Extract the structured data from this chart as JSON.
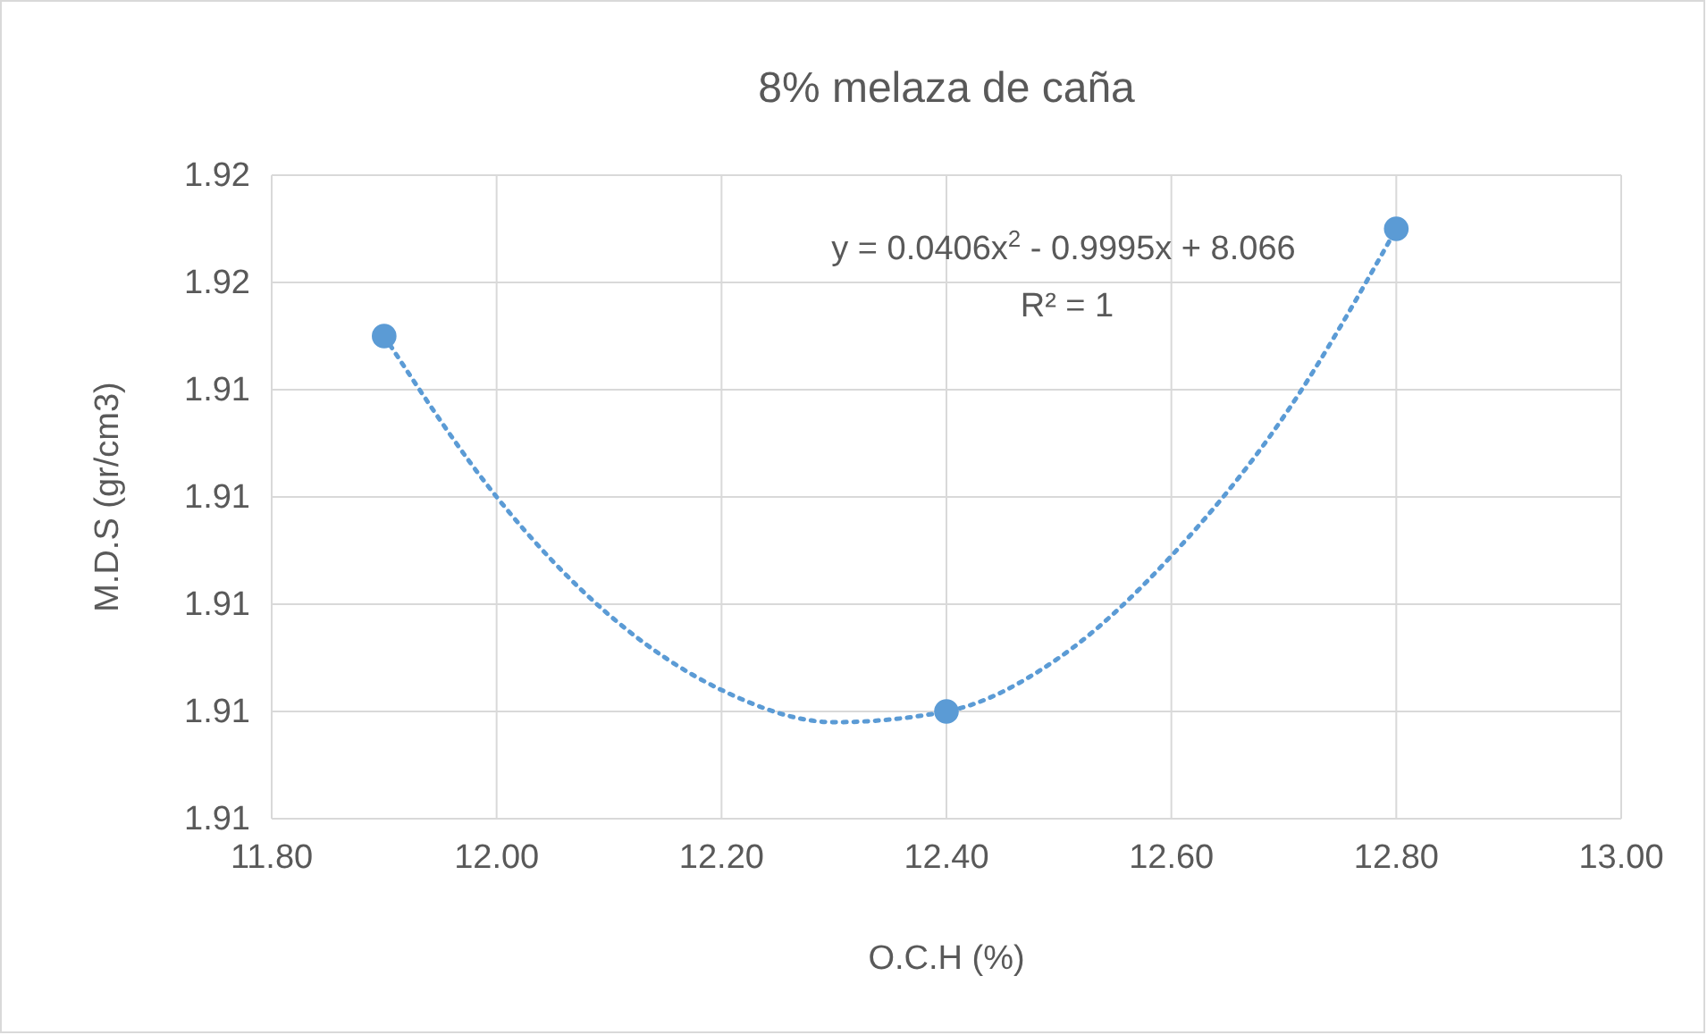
{
  "chart_data": {
    "type": "scatter",
    "title": "8% melaza de caña",
    "xlabel": "O.C.H (%)",
    "ylabel": "M.D.S (gr/cm3)",
    "xlim": [
      11.8,
      13.0
    ],
    "xticks": [
      {
        "value": 11.8,
        "label": "11.80"
      },
      {
        "value": 12.0,
        "label": "12.00"
      },
      {
        "value": 12.2,
        "label": "12.20"
      },
      {
        "value": 12.4,
        "label": "12.40"
      },
      {
        "value": 12.6,
        "label": "12.60"
      },
      {
        "value": 12.8,
        "label": "12.80"
      },
      {
        "value": 13.0,
        "label": "13.00"
      }
    ],
    "ylim": [
      1.906,
      1.918
    ],
    "yticks": [
      {
        "value": 1.906,
        "label": "1.91"
      },
      {
        "value": 1.908,
        "label": "1.91"
      },
      {
        "value": 1.91,
        "label": "1.91"
      },
      {
        "value": 1.912,
        "label": "1.91"
      },
      {
        "value": 1.914,
        "label": "1.91"
      },
      {
        "value": 1.916,
        "label": "1.92"
      },
      {
        "value": 1.918,
        "label": "1.92"
      }
    ],
    "grid": true,
    "marker": "circle",
    "series": [
      {
        "color": "#5b9bd5",
        "x": [
          11.9,
          12.4,
          12.8
        ],
        "values": [
          1.915,
          1.908,
          1.917
        ]
      },
      {
        "type": "line",
        "color": "#5b9bd5",
        "line_style": "dotted",
        "marker": "none",
        "x": [
          11.9,
          12.0,
          12.1,
          12.2,
          12.3,
          12.4,
          12.5,
          12.6,
          12.7,
          12.8
        ],
        "values": [
          1.915,
          1.912,
          1.9098,
          1.9084,
          1.9078,
          1.908,
          1.909,
          1.9109,
          1.9135,
          1.917
        ]
      }
    ],
    "annotations": [
      "y = 0.0406x$^{2}$ - 0.9995x + 8.066",
      "R² = 1"
    ]
  }
}
